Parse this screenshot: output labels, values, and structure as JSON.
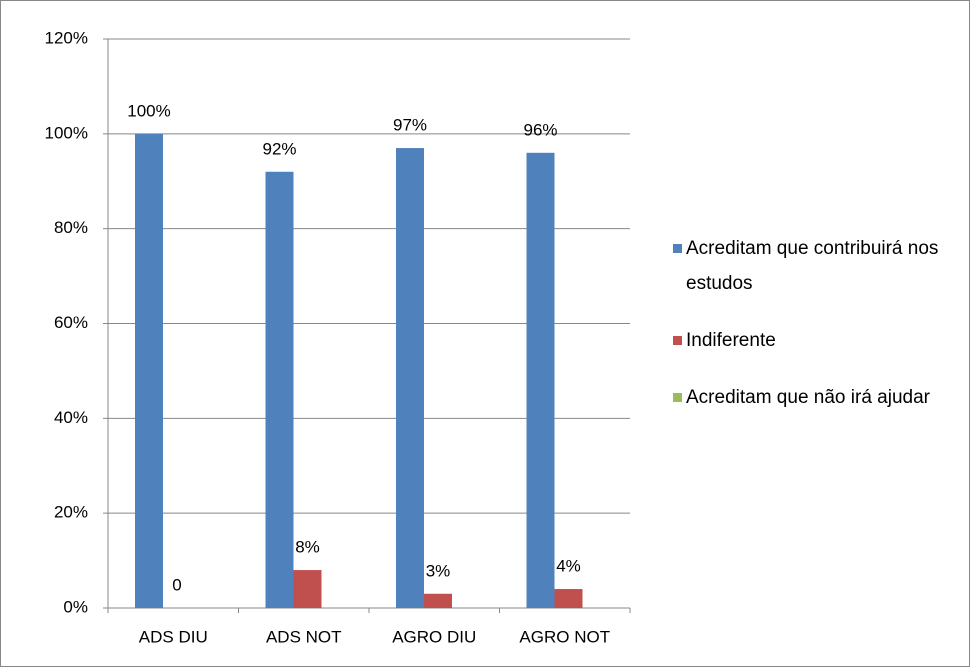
{
  "chart_data": {
    "type": "bar",
    "categories": [
      "ADS DIU",
      "ADS NOT",
      "AGRO DIU",
      "AGRO NOT"
    ],
    "series": [
      {
        "name": "Acreditam que contribuirá nos estudos",
        "color": "#4f81bd",
        "values": [
          100,
          92,
          97,
          96
        ],
        "value_labels": [
          "100%",
          "92%",
          "97%",
          "96%"
        ]
      },
      {
        "name": "Indiferente",
        "color": "#c0504d",
        "values": [
          0,
          8,
          3,
          4
        ],
        "value_labels": [
          "0",
          "8%",
          "3%",
          "4%"
        ]
      },
      {
        "name": "Acreditam que não irá ajudar",
        "color": "#9bbb59",
        "values": [
          null,
          null,
          null,
          null
        ]
      }
    ],
    "ylim": [
      0,
      120
    ],
    "yticks": [
      {
        "value": 0,
        "label": "0%"
      },
      {
        "value": 20,
        "label": "20%"
      },
      {
        "value": 40,
        "label": "40%"
      },
      {
        "value": 60,
        "label": "60%"
      },
      {
        "value": 80,
        "label": "80%"
      },
      {
        "value": 100,
        "label": "100%"
      },
      {
        "value": 120,
        "label": "120%"
      }
    ],
    "grid": true,
    "legend": "right"
  }
}
